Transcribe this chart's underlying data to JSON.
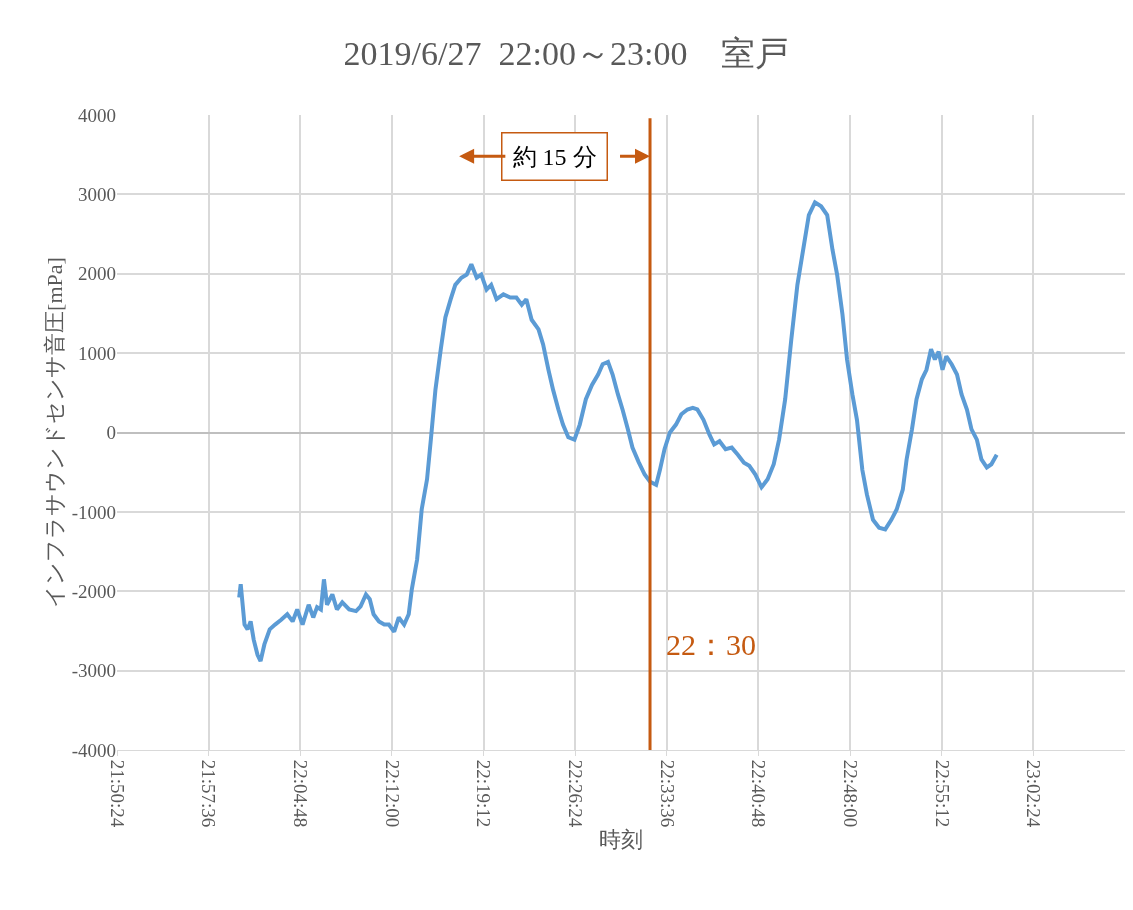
{
  "chart_data": {
    "type": "line",
    "title": "2019/6/27  22:00～23:00　室戸",
    "xlabel": "時刻",
    "ylabel": "インフラサウンドセンサ音圧[mPa]",
    "x": [
      22.0,
      22.002,
      22.007,
      22.011,
      22.015,
      22.019,
      22.024,
      22.028,
      22.033,
      22.04,
      22.047,
      22.055,
      22.063,
      22.07,
      22.076,
      22.083,
      22.091,
      22.097,
      22.102,
      22.107,
      22.111,
      22.115,
      22.122,
      22.128,
      22.135,
      22.144,
      22.153,
      22.159,
      22.166,
      22.171,
      22.176,
      22.183,
      22.19,
      22.196,
      22.203,
      22.209,
      22.216,
      22.222,
      22.226,
      22.233,
      22.239,
      22.246,
      22.251,
      22.257,
      22.264,
      22.27,
      22.277,
      22.283,
      22.291,
      22.298,
      22.304,
      22.311,
      22.317,
      22.324,
      22.33,
      22.337,
      22.346,
      22.355,
      22.363,
      22.37,
      22.376,
      22.383,
      22.392,
      22.398,
      22.405,
      22.411,
      22.418,
      22.424,
      22.431,
      22.439,
      22.446,
      22.454,
      22.462,
      22.47,
      22.476,
      22.483,
      22.489,
      22.496,
      22.502,
      22.509,
      22.515,
      22.523,
      22.531,
      22.538,
      22.546,
      22.551,
      22.557,
      22.564,
      22.572,
      22.579,
      22.587,
      22.594,
      22.6,
      22.608,
      22.616,
      22.622,
      22.629,
      22.637,
      22.645,
      22.653,
      22.661,
      22.668,
      22.676,
      22.684,
      22.692,
      22.7,
      22.707,
      22.715,
      22.723,
      22.731,
      22.739,
      22.746,
      22.754,
      22.762,
      22.77,
      22.777,
      22.783,
      22.79,
      22.796,
      22.803,
      22.809,
      22.816,
      22.822,
      22.83,
      22.838,
      22.846,
      22.854,
      22.861,
      22.869,
      22.874,
      22.881,
      22.887,
      22.894,
      22.9,
      22.906,
      22.911,
      22.916,
      22.921,
      22.926,
      22.933,
      22.94,
      22.946,
      22.953,
      22.959,
      22.966,
      22.972,
      22.979,
      22.985,
      22.992
    ],
    "series": [
      {
        "color": "#5b9bd5",
        "values": [
          -2080,
          -1910,
          -2420,
          -2480,
          -2380,
          -2610,
          -2800,
          -2880,
          -2670,
          -2480,
          -2420,
          -2360,
          -2290,
          -2380,
          -2230,
          -2420,
          -2170,
          -2330,
          -2200,
          -2230,
          -1850,
          -2170,
          -2040,
          -2230,
          -2140,
          -2230,
          -2250,
          -2190,
          -2040,
          -2100,
          -2290,
          -2380,
          -2420,
          -2420,
          -2510,
          -2330,
          -2420,
          -2290,
          -1980,
          -1600,
          -970,
          -590,
          -90,
          540,
          1050,
          1450,
          1680,
          1860,
          1950,
          1990,
          2120,
          1950,
          1990,
          1800,
          1860,
          1680,
          1740,
          1700,
          1700,
          1610,
          1680,
          1420,
          1300,
          1110,
          790,
          540,
          290,
          100,
          -60,
          -90,
          100,
          420,
          600,
          730,
          860,
          890,
          730,
          480,
          290,
          40,
          -190,
          -370,
          -530,
          -620,
          -660,
          -470,
          -210,
          0,
          100,
          230,
          290,
          310,
          290,
          160,
          -30,
          -150,
          -110,
          -210,
          -190,
          -280,
          -380,
          -420,
          -530,
          -690,
          -590,
          -400,
          -90,
          420,
          1170,
          1860,
          2330,
          2740,
          2900,
          2850,
          2740,
          2300,
          1990,
          1490,
          920,
          480,
          160,
          -470,
          -780,
          -1100,
          -1200,
          -1220,
          -1100,
          -970,
          -720,
          -340,
          40,
          420,
          670,
          790,
          1050,
          920,
          1020,
          790,
          960,
          860,
          730,
          480,
          290,
          40,
          -90,
          -340,
          -440,
          -400,
          -280
        ]
      }
    ],
    "xlim": [
      21.84,
      23.16
    ],
    "xticks": [
      {
        "value": 21.84,
        "label": "21:50:24"
      },
      {
        "value": 21.96,
        "label": "21:57:36"
      },
      {
        "value": 22.08,
        "label": "22:04:48"
      },
      {
        "value": 22.2,
        "label": "22:12:00"
      },
      {
        "value": 22.32,
        "label": "22:19:12"
      },
      {
        "value": 22.44,
        "label": "22:26:24"
      },
      {
        "value": 22.56,
        "label": "22:33:36"
      },
      {
        "value": 22.68,
        "label": "22:40:48"
      },
      {
        "value": 22.8,
        "label": "22:48:00"
      },
      {
        "value": 22.92,
        "label": "22:55:12"
      },
      {
        "value": 23.04,
        "label": "23:02:24"
      }
    ],
    "ylim": [
      -4000,
      4000
    ],
    "yticks": [
      -4000,
      -3000,
      -2000,
      -1000,
      0,
      1000,
      2000,
      3000,
      4000
    ],
    "grid": true,
    "ref_lines": [
      {
        "axis": "x",
        "value": 22.538,
        "label": "22：30",
        "color": "#c55a11"
      }
    ],
    "annotations": [
      {
        "text": "約 15 分",
        "x": 22.538,
        "y": 3480
      }
    ]
  }
}
